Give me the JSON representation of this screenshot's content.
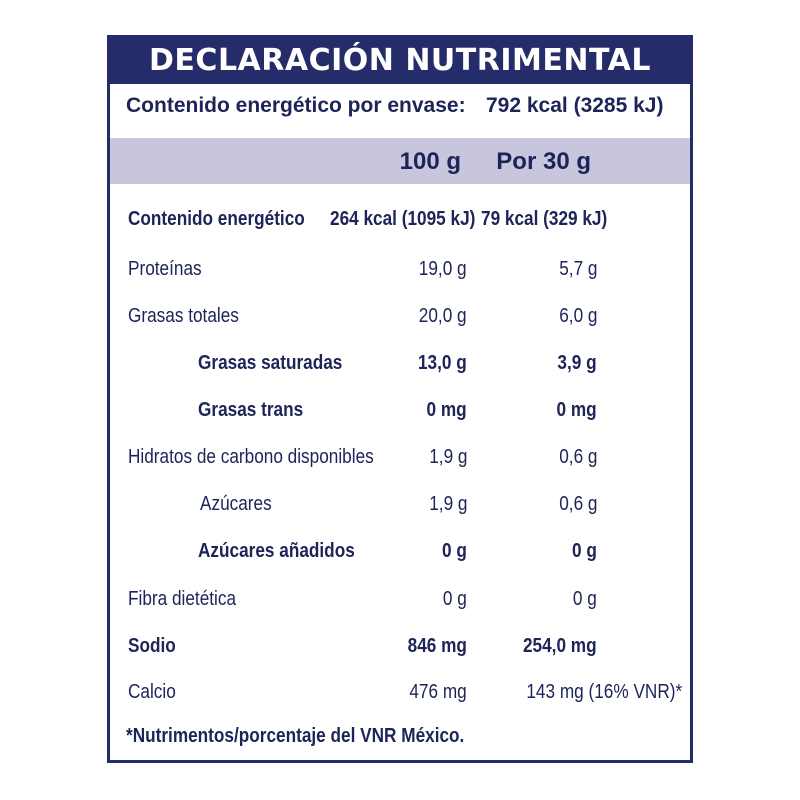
{
  "label": {
    "title": "DECLARACIÓN NUTRIMENTAL",
    "energy_per_pack_label": "Contenido energético por envase:",
    "energy_per_pack_value": "792 kcal (3285 kJ)",
    "col_100g": "100 g",
    "col_30g": "Por 30 g",
    "rows": [
      {
        "name": "Contenido energético",
        "v100": "264 kcal (1095 kJ)",
        "v30": "79 kcal (329 kJ)"
      },
      {
        "name": "Proteínas",
        "v100": "19,0 g",
        "v30": "5,7 g"
      },
      {
        "name": "Grasas totales",
        "v100": "20,0 g",
        "v30": "6,0 g"
      },
      {
        "name": "Grasas saturadas",
        "v100": "13,0 g",
        "v30": "3,9 g"
      },
      {
        "name": "Grasas trans",
        "v100": "0 mg",
        "v30": "0 mg"
      },
      {
        "name": "Hidratos de carbono disponibles",
        "v100": "1,9 g",
        "v30": "0,6 g"
      },
      {
        "name": "Azúcares",
        "v100": "1,9 g",
        "v30": "0,6 g"
      },
      {
        "name": "Azúcares añadidos",
        "v100": "0 g",
        "v30": "0 g"
      },
      {
        "name": "Fibra dietética",
        "v100": "0 g",
        "v30": "0 g"
      },
      {
        "name": "Sodio",
        "v100": "846 mg",
        "v30": "254,0 mg"
      },
      {
        "name": "Calcio",
        "v100": "476 mg",
        "v30": "143 mg (16% VNR)*"
      }
    ],
    "footnote": "*Nutrimentos/porcentaje del VNR México."
  }
}
